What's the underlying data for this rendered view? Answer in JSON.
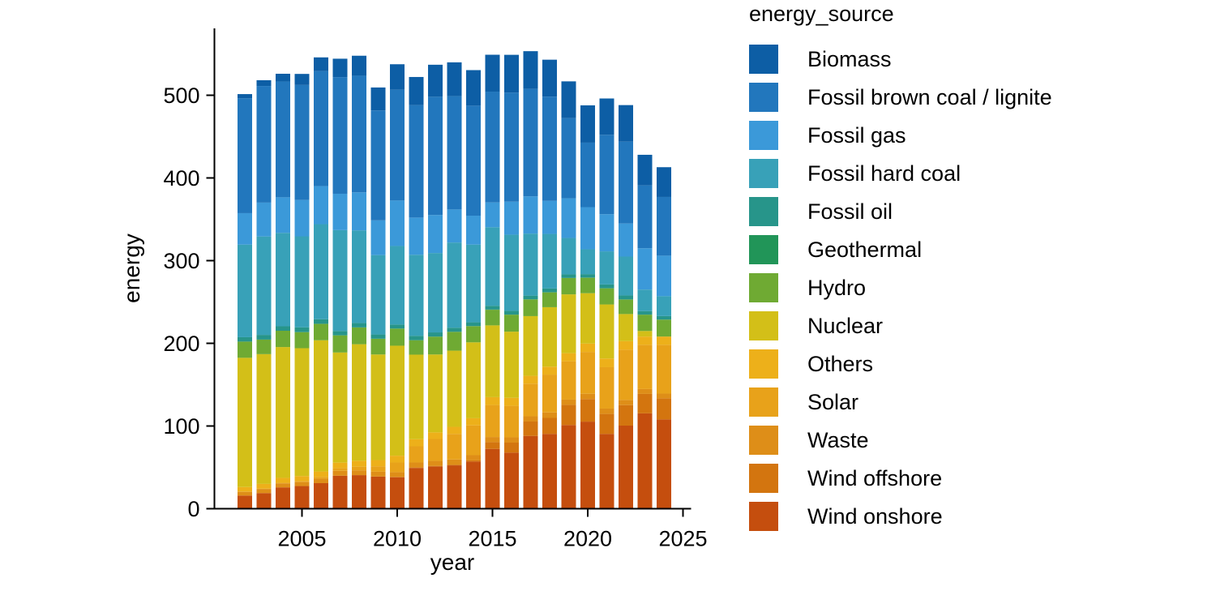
{
  "figure": {
    "background": "#ffffff",
    "text_color": "#000000",
    "axis_color": "#000000"
  },
  "legend": {
    "title": "energy_source",
    "position": "right"
  },
  "chart_data": {
    "type": "bar",
    "stacked": true,
    "title": "",
    "xlabel": "year",
    "ylabel": "energy",
    "categories": [
      2002,
      2003,
      2004,
      2005,
      2006,
      2007,
      2008,
      2009,
      2010,
      2011,
      2012,
      2013,
      2014,
      2015,
      2016,
      2017,
      2018,
      2019,
      2020,
      2021,
      2022,
      2023,
      2024
    ],
    "x_ticks": [
      2005,
      2010,
      2015,
      2020,
      2025
    ],
    "y_ticks": [
      0,
      100,
      200,
      300,
      400,
      500
    ],
    "xlim": [
      2001.3,
      2025.6
    ],
    "ylim": [
      0,
      581
    ],
    "grid": false,
    "legend_position": "right",
    "stack_order_bottom_to_top": [
      "Wind onshore",
      "Wind offshore",
      "Waste",
      "Solar",
      "Others",
      "Nuclear",
      "Hydro",
      "Geothermal",
      "Fossil oil",
      "Fossil hard coal",
      "Fossil gas",
      "Fossil brown coal / lignite",
      "Biomass"
    ],
    "series": [
      {
        "name": "Biomass",
        "color": "#0d5ea5",
        "values": [
          5.0,
          7.0,
          9.4,
          13.4,
          16.7,
          22.3,
          24.2,
          27.7,
          30.8,
          34.0,
          38.7,
          40.9,
          43.0,
          44.6,
          45.6,
          45.6,
          44.7,
          44.4,
          45.1,
          43.9,
          44.2,
          37.0,
          36.0
        ]
      },
      {
        "name": "Fossil brown coal / lignite",
        "color": "#2277bd",
        "values": [
          139,
          141,
          140,
          139,
          139,
          141,
          141,
          133,
          134,
          136,
          143,
          137,
          133,
          134,
          132,
          130,
          126,
          97,
          78,
          96,
          99,
          76,
          71
        ]
      },
      {
        "name": "Fossil gas",
        "color": "#3b99d9",
        "values": [
          38,
          41,
          43,
          44,
          46,
          44,
          46,
          42,
          55,
          45,
          46,
          40,
          35,
          30,
          40,
          45,
          40,
          48,
          51,
          45,
          40,
          50,
          49
        ]
      },
      {
        "name": "Fossil hard coal",
        "color": "#38a1b8",
        "values": [
          112,
          119,
          113,
          110,
          115,
          122,
          112,
          96,
          95,
          98,
          96,
          103,
          94,
          95,
          92,
          75,
          66,
          44,
          30,
          40,
          47,
          26,
          24
        ]
      },
      {
        "name": "Fossil oil",
        "color": "#27958a",
        "values": [
          5.3,
          5.7,
          5.4,
          5.8,
          5.5,
          5.1,
          5.3,
          5.1,
          4.8,
          5.2,
          5.0,
          4.9,
          4.5,
          4.6,
          4.5,
          4.4,
          4.5,
          4.3,
          4.2,
          4.5,
          4.8,
          4.2,
          4.2
        ]
      },
      {
        "name": "Geothermal",
        "color": "#219558",
        "values": [
          0,
          0,
          0,
          0.1,
          0.1,
          0.2,
          0.2,
          0.2,
          0.2,
          0.2,
          0.2,
          0.2,
          0.2,
          0.2,
          0.2,
          0.2,
          0.2,
          0.2,
          0.2,
          0.2,
          0.2,
          0.2,
          0.2
        ]
      },
      {
        "name": "Hydro",
        "color": "#6faa33",
        "values": [
          19.6,
          17.6,
          19.7,
          19.4,
          19.8,
          20.7,
          20.2,
          18.9,
          20.6,
          17.4,
          21.5,
          22.7,
          19.5,
          18.9,
          20.5,
          20.2,
          17.9,
          19.7,
          18.7,
          19.5,
          17.5,
          19.7,
          20.4
        ]
      },
      {
        "name": "Nuclear",
        "color": "#d3bf18",
        "values": [
          156.3,
          156.9,
          158.2,
          154.6,
          158.7,
          133.2,
          140.9,
          127.7,
          133.0,
          102.3,
          94.2,
          92.1,
          91.8,
          86.8,
          80.0,
          72.2,
          71.9,
          71.1,
          60.9,
          65.4,
          32.8,
          6.7,
          0
        ]
      },
      {
        "name": "Others",
        "color": "#edb01a",
        "values": [
          5.5,
          5.8,
          6.0,
          6.0,
          6.6,
          6.8,
          7.2,
          7.5,
          8.2,
          8.5,
          8.0,
          8.5,
          8.6,
          9.5,
          9.7,
          9.5,
          9.6,
          9.8,
          10.1,
          10.5,
          10.3,
          10.0,
          10.0
        ]
      },
      {
        "name": "Solar",
        "color": "#e8a21a",
        "values": [
          0.2,
          0.3,
          0.6,
          1.3,
          2.2,
          3.1,
          4.4,
          6.6,
          11.7,
          19.6,
          26.4,
          31.0,
          36.1,
          38.7,
          38.1,
          39.4,
          45.8,
          46.4,
          50.6,
          50.0,
          60.8,
          53.5,
          59.0
        ]
      },
      {
        "name": "Waste",
        "color": "#de8e18",
        "values": [
          4.6,
          5.0,
          4.9,
          4.8,
          5.3,
          5.9,
          5.8,
          5.8,
          5.9,
          6.0,
          6.1,
          6.2,
          6.3,
          6.2,
          6.4,
          6.4,
          6.6,
          6.3,
          6.4,
          6.5,
          6.2,
          5.9,
          5.7
        ]
      },
      {
        "name": "Wind offshore",
        "color": "#d3750f",
        "values": [
          0,
          0,
          0,
          0,
          0,
          0,
          0,
          0,
          0.2,
          0.6,
          0.7,
          0.9,
          1.4,
          8.2,
          12.1,
          17.4,
          19.3,
          24.4,
          27.3,
          24.1,
          24.8,
          23.5,
          25.5
        ]
      },
      {
        "name": "Wind onshore",
        "color": "#c54e0e",
        "values": [
          15.9,
          18.9,
          25.8,
          27.4,
          30.9,
          39.9,
          40.6,
          38.9,
          38.1,
          49.3,
          51.1,
          52.4,
          57.0,
          72.3,
          67.8,
          88.0,
          90.5,
          101.2,
          105.3,
          90.5,
          100.5,
          115.3,
          108.0
        ]
      }
    ]
  }
}
